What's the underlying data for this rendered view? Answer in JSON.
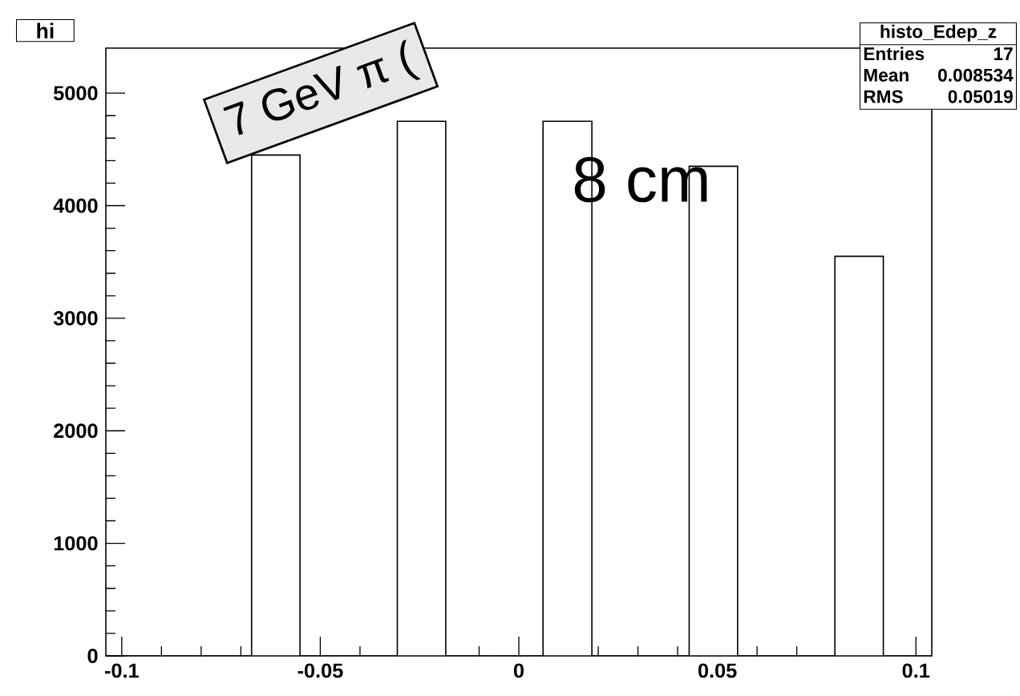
{
  "chart_data": {
    "type": "histogram",
    "title": "hi",
    "bins": [
      -0.104,
      -0.0918,
      -0.0796,
      -0.0673,
      -0.0551,
      -0.0429,
      -0.0306,
      -0.0184,
      -0.0061,
      0.0061,
      0.0184,
      0.0306,
      0.0429,
      0.0551,
      0.0673,
      0.0796,
      0.0918,
      0.104
    ],
    "values": [
      0,
      0,
      0,
      4450,
      0,
      0,
      4750,
      0,
      0,
      4750,
      0,
      0,
      4350,
      0,
      0,
      3550,
      0
    ],
    "color": "#ffffff",
    "xlim": [
      -0.104,
      0.104
    ],
    "xticks": [
      -0.1,
      -0.05,
      0,
      0.05,
      0.1
    ],
    "ylim": [
      0,
      5400
    ],
    "yticks": [
      0,
      1000,
      2000,
      3000,
      4000,
      5000
    ],
    "grid": false,
    "annotations": [
      "7 GeV π (",
      "8 cm",
      "histo_Edep_z",
      "Entries",
      "17",
      "Mean",
      "0.008534",
      "RMS",
      "0.05019"
    ]
  }
}
